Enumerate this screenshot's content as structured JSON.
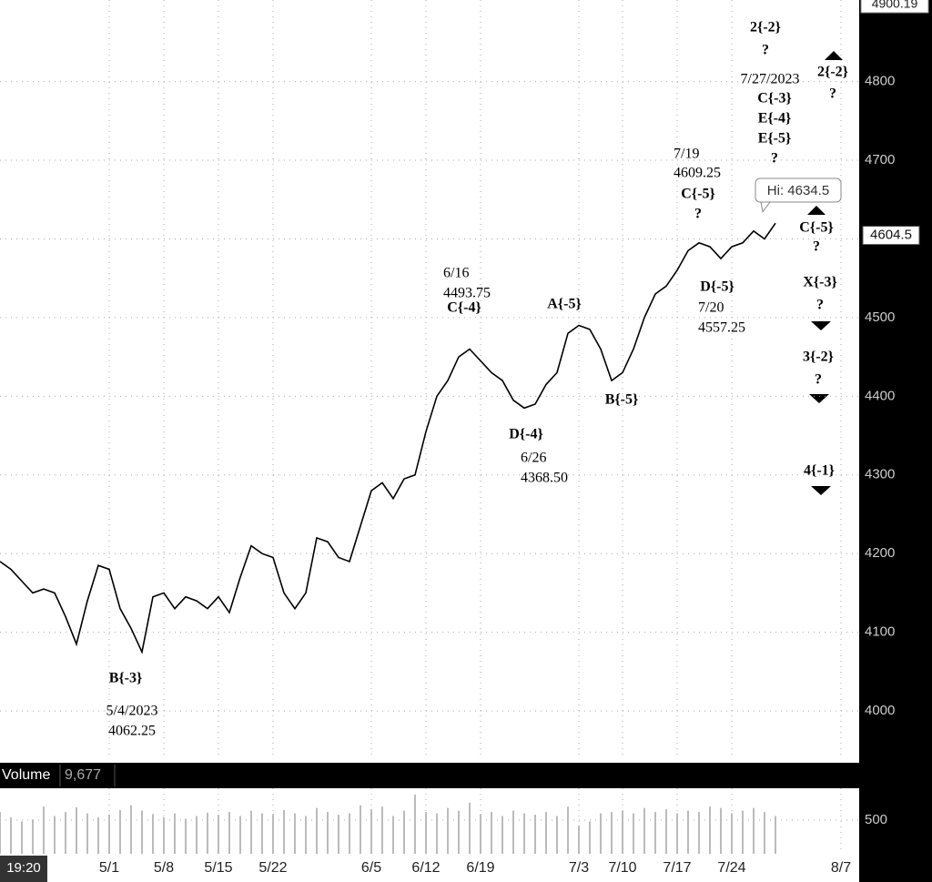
{
  "chart_data": [
    {
      "type": "line",
      "categories": [
        null,
        null,
        null,
        null,
        null,
        null,
        null,
        null,
        null,
        null,
        "5/1",
        null,
        null,
        null,
        null,
        "5/8",
        null,
        null,
        null,
        null,
        "5/15",
        null,
        null,
        null,
        null,
        "5/22",
        null,
        null,
        null,
        null,
        null,
        null,
        null,
        null,
        "6/5",
        null,
        null,
        null,
        null,
        "6/12",
        null,
        null,
        null,
        null,
        "6/19",
        null,
        null,
        null,
        null,
        null,
        null,
        null,
        null,
        "7/3",
        null,
        null,
        null,
        "7/10",
        null,
        null,
        null,
        null,
        "7/17",
        null,
        null,
        null,
        null,
        "7/24",
        null,
        null,
        null,
        null,
        null,
        null,
        null,
        null,
        null,
        "8/7"
      ],
      "values": [
        4190,
        4180,
        4165,
        4150,
        4155,
        4150,
        4120,
        4085,
        4140,
        4185,
        4180,
        4130,
        4105,
        4075,
        4145,
        4150,
        4130,
        4145,
        4140,
        4130,
        4145,
        4125,
        4170,
        4210,
        4200,
        4195,
        4150,
        4130,
        4150,
        4220,
        4215,
        4195,
        4190,
        4235,
        4280,
        4290,
        4270,
        4295,
        4300,
        4355,
        4400,
        4420,
        4450,
        4460,
        4445,
        4430,
        4420,
        4395,
        4385,
        4390,
        4415,
        4430,
        4480,
        4490,
        4485,
        4460,
        4420,
        4430,
        4460,
        4500,
        4530,
        4540,
        4560,
        4585,
        4595,
        4590,
        4575,
        4590,
        4595,
        4610,
        4600,
        4620,
        null,
        null,
        null,
        null,
        null,
        null
      ],
      "color": "#000000",
      "ylim": [
        3943.4,
        4900.19
      ],
      "yticks": [
        4000,
        4100,
        4200,
        4300,
        4400,
        4500,
        4600,
        4700,
        4800
      ],
      "grid": true,
      "high": 4634.5,
      "high_label": "Hi: 4634.5",
      "last": 4604.5,
      "time_label": "19:20",
      "annotations": [
        [
          "B{-3}"
        ],
        [
          "5/4/2023",
          "4062.25"
        ],
        [
          "6/16",
          "4493.75"
        ],
        [
          "C{-4}"
        ],
        [
          "A{-5}"
        ],
        [
          "D{-4}"
        ],
        [
          "6/26",
          "4368.50"
        ],
        [
          "B{-5}"
        ],
        [
          "7/19",
          "4609.25"
        ],
        [
          "C{-5}",
          "?"
        ],
        [
          "D{-5}"
        ],
        [
          "7/20",
          "4557.25"
        ],
        [
          "2{-2}",
          "?"
        ],
        [
          "7/27/2023"
        ],
        [
          "C{-3}",
          "E{-4}",
          "E{-5}",
          "?"
        ],
        [
          "2{-2}",
          "?"
        ],
        [
          "C{-5}",
          "?"
        ],
        [
          "X{-3}",
          "?"
        ],
        [
          "3{-2}",
          "?"
        ],
        [
          "4{-1}"
        ]
      ]
    },
    {
      "type": "bar",
      "title": "Volume",
      "last": {
        "value": 9677,
        "label": "9,677"
      },
      "values": [
        620,
        540,
        480,
        510,
        700,
        560,
        620,
        690,
        600,
        540,
        580,
        650,
        720,
        640,
        590,
        540,
        600,
        520,
        560,
        610,
        580,
        620,
        560,
        640,
        600,
        590,
        650,
        600,
        560,
        680,
        620,
        580,
        600,
        720,
        660,
        700,
        560,
        640,
        880,
        620,
        600,
        680,
        640,
        760,
        590,
        620,
        560,
        640,
        600,
        580,
        620,
        560,
        700,
        420,
        480,
        600,
        620,
        640,
        600,
        680,
        620,
        660,
        600,
        640,
        620,
        700,
        680,
        600,
        640,
        680,
        620,
        560,
        null,
        null,
        null,
        null,
        null,
        null
      ],
      "color": "#bbbbbb",
      "ylim": [
        0,
        973
      ],
      "yticks": [
        500
      ]
    }
  ]
}
